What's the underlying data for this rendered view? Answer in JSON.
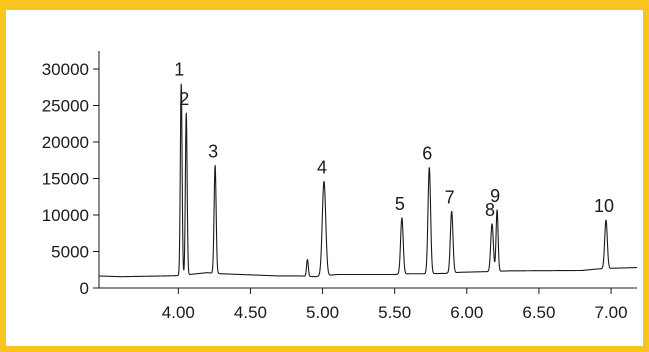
{
  "chart_data": {
    "type": "line",
    "title": "",
    "xlabel": "",
    "ylabel": "",
    "xlim": [
      3.45,
      7.18
    ],
    "ylim": [
      0,
      30000
    ],
    "x_ticks": [
      4.0,
      4.5,
      5.0,
      5.5,
      6.0,
      6.5,
      7.0
    ],
    "x_tick_labels": [
      "4.00",
      "4.50",
      "5.00",
      "5.50",
      "6.00",
      "6.50",
      "7.00"
    ],
    "y_ticks": [
      0,
      5000,
      10000,
      15000,
      20000,
      25000,
      30000
    ],
    "y_tick_labels": [
      "0",
      "5000",
      "10000",
      "15000",
      "20000",
      "25000",
      "30000"
    ],
    "grid": false,
    "series": [
      {
        "color": "#1a1a1a",
        "baseline": [
          [
            3.45,
            1650
          ],
          [
            3.6,
            1550
          ],
          [
            3.9,
            1650
          ],
          [
            4.0,
            1700
          ],
          [
            4.1,
            1900
          ],
          [
            4.2,
            2100
          ],
          [
            4.3,
            1950
          ],
          [
            4.7,
            1650
          ],
          [
            4.85,
            1650
          ],
          [
            4.95,
            1550
          ],
          [
            5.1,
            1850
          ],
          [
            5.5,
            1850
          ],
          [
            5.6,
            1950
          ],
          [
            5.7,
            1950
          ],
          [
            5.85,
            2000
          ],
          [
            5.95,
            2150
          ],
          [
            6.15,
            2250
          ],
          [
            6.3,
            2350
          ],
          [
            6.8,
            2400
          ],
          [
            6.9,
            2600
          ],
          [
            7.0,
            2700
          ],
          [
            7.18,
            2800
          ]
        ],
        "peaks": [
          {
            "label": "1",
            "x": 4.02,
            "height": 28000,
            "width": 0.006
          },
          {
            "label": "2",
            "x": 4.055,
            "height": 24000,
            "width": 0.006
          },
          {
            "label": "3",
            "x": 4.255,
            "height": 16800,
            "width": 0.007
          },
          {
            "label": "4",
            "x": 5.01,
            "height": 14600,
            "width": 0.012
          },
          {
            "label": "5",
            "x": 5.55,
            "height": 9600,
            "width": 0.009
          },
          {
            "label": "6",
            "x": 5.74,
            "height": 16500,
            "width": 0.009
          },
          {
            "label": "7",
            "x": 5.895,
            "height": 10500,
            "width": 0.009
          },
          {
            "label": "8",
            "x": 6.175,
            "height": 8800,
            "width": 0.009
          },
          {
            "label": "9",
            "x": 6.21,
            "height": 10700,
            "width": 0.007
          },
          {
            "label": "10",
            "x": 6.965,
            "height": 9300,
            "width": 0.009
          },
          {
            "label": "",
            "x": 4.895,
            "height": 3900,
            "width": 0.006
          }
        ]
      }
    ]
  }
}
